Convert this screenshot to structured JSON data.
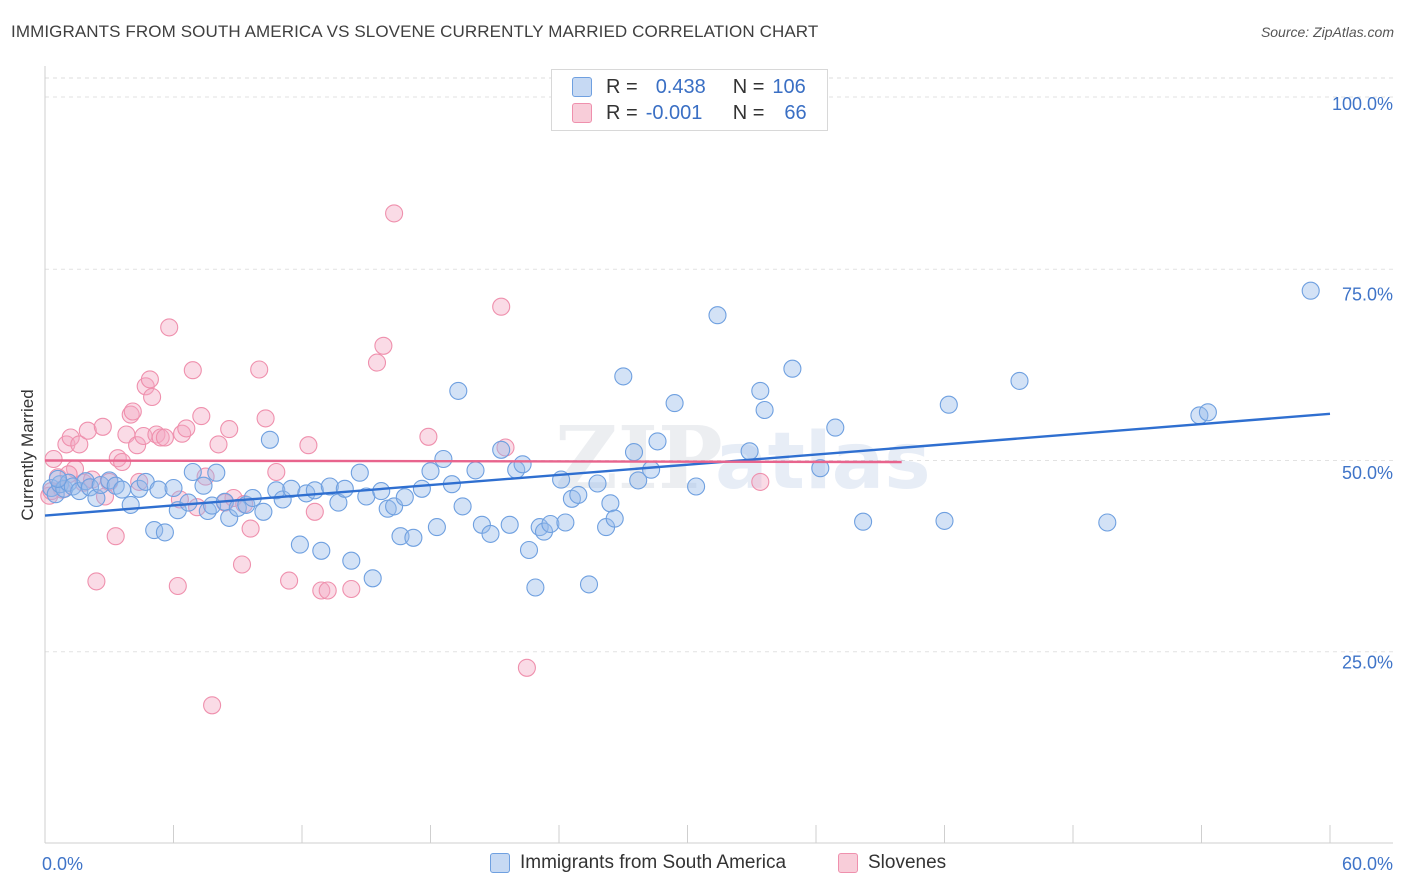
{
  "header": {
    "title": "IMMIGRANTS FROM SOUTH AMERICA VS SLOVENE CURRENTLY MARRIED CORRELATION CHART",
    "source": "Source: ZipAtlas.com"
  },
  "watermark": {
    "zip": "ZIP",
    "atlas": "atlas"
  },
  "legend_stats": [
    {
      "r_label": "R =",
      "r_value": "0.438",
      "n_label": "N =",
      "n_value": "106",
      "color": "#6fa0e0"
    },
    {
      "r_label": "R =",
      "r_value": "-0.001",
      "n_label": "N =",
      "n_value": "66",
      "color": "#ef90ad"
    }
  ],
  "chart_data": {
    "type": "scatter",
    "title": "IMMIGRANTS FROM SOUTH AMERICA VS SLOVENE CURRENTLY MARRIED CORRELATION CHART",
    "xlabel": "",
    "ylabel": "Currently Married",
    "xlim": [
      0,
      60
    ],
    "ylim": [
      0,
      100
    ],
    "x_tick_labels": [
      "0.0%",
      "60.0%"
    ],
    "y_tick_labels": [
      "100.0%",
      "75.0%",
      "50.0%",
      "25.0%"
    ],
    "y_ticks": [
      100,
      75,
      50,
      25
    ],
    "grid": true,
    "legend_position": "bottom",
    "series": [
      {
        "name": "Immigrants from South America",
        "color": "#6fa0e0",
        "trend": {
          "x": [
            0,
            60
          ],
          "y": [
            42.8,
            56.1
          ]
        },
        "points": [
          [
            0.3,
            46.4
          ],
          [
            0.5,
            45.6
          ],
          [
            0.7,
            46.9
          ],
          [
            0.9,
            46.3
          ],
          [
            1.1,
            47.1
          ],
          [
            1.3,
            46.6
          ],
          [
            1.6,
            46.0
          ],
          [
            1.9,
            47.3
          ],
          [
            2.1,
            46.5
          ],
          [
            2.4,
            45.1
          ],
          [
            2.6,
            46.8
          ],
          [
            3.0,
            47.4
          ],
          [
            3.3,
            46.7
          ],
          [
            3.6,
            46.2
          ],
          [
            4.0,
            44.2
          ],
          [
            4.4,
            46.3
          ],
          [
            4.7,
            47.2
          ],
          [
            5.1,
            40.9
          ],
          [
            5.3,
            46.2
          ],
          [
            5.6,
            40.6
          ],
          [
            6.0,
            46.4
          ],
          [
            6.2,
            43.5
          ],
          [
            6.7,
            44.5
          ],
          [
            6.9,
            48.5
          ],
          [
            7.4,
            46.7
          ],
          [
            7.6,
            43.4
          ],
          [
            7.8,
            44.1
          ],
          [
            8.0,
            48.4
          ],
          [
            8.4,
            44.6
          ],
          [
            8.6,
            42.5
          ],
          [
            9.0,
            43.8
          ],
          [
            9.4,
            44.2
          ],
          [
            9.7,
            45.1
          ],
          [
            10.2,
            43.3
          ],
          [
            10.5,
            52.7
          ],
          [
            10.8,
            46.1
          ],
          [
            11.1,
            44.9
          ],
          [
            11.5,
            46.3
          ],
          [
            11.9,
            39.0
          ],
          [
            12.2,
            45.7
          ],
          [
            12.6,
            46.1
          ],
          [
            12.9,
            38.2
          ],
          [
            13.3,
            46.6
          ],
          [
            13.7,
            44.5
          ],
          [
            14.0,
            46.3
          ],
          [
            14.3,
            36.9
          ],
          [
            14.7,
            48.4
          ],
          [
            15.0,
            45.3
          ],
          [
            15.3,
            34.6
          ],
          [
            15.7,
            46.0
          ],
          [
            16.0,
            43.7
          ],
          [
            16.3,
            44.0
          ],
          [
            16.6,
            40.1
          ],
          [
            16.8,
            45.2
          ],
          [
            17.2,
            39.9
          ],
          [
            17.6,
            46.3
          ],
          [
            18.0,
            48.6
          ],
          [
            18.3,
            41.3
          ],
          [
            18.6,
            50.2
          ],
          [
            19.0,
            46.9
          ],
          [
            19.3,
            59.1
          ],
          [
            19.5,
            44.0
          ],
          [
            20.1,
            48.7
          ],
          [
            20.4,
            41.6
          ],
          [
            20.8,
            40.4
          ],
          [
            21.3,
            51.4
          ],
          [
            21.7,
            41.6
          ],
          [
            22.0,
            48.8
          ],
          [
            22.3,
            49.5
          ],
          [
            22.6,
            38.3
          ],
          [
            22.9,
            33.4
          ],
          [
            23.1,
            41.3
          ],
          [
            23.3,
            40.7
          ],
          [
            23.6,
            41.7
          ],
          [
            24.1,
            47.5
          ],
          [
            24.3,
            41.9
          ],
          [
            24.6,
            45.0
          ],
          [
            24.9,
            45.5
          ],
          [
            25.4,
            33.8
          ],
          [
            25.8,
            47.0
          ],
          [
            26.2,
            41.3
          ],
          [
            26.4,
            44.4
          ],
          [
            26.6,
            42.4
          ],
          [
            27.0,
            61.0
          ],
          [
            27.5,
            51.1
          ],
          [
            27.7,
            47.4
          ],
          [
            28.3,
            48.8
          ],
          [
            28.6,
            52.5
          ],
          [
            29.4,
            57.5
          ],
          [
            30.4,
            46.6
          ],
          [
            31.4,
            69.0
          ],
          [
            32.9,
            51.2
          ],
          [
            33.4,
            59.1
          ],
          [
            33.6,
            56.6
          ],
          [
            34.9,
            62.0
          ],
          [
            36.2,
            49.0
          ],
          [
            36.9,
            54.3
          ],
          [
            38.2,
            42.0
          ],
          [
            42.0,
            42.1
          ],
          [
            42.2,
            57.3
          ],
          [
            45.5,
            60.4
          ],
          [
            49.6,
            41.9
          ],
          [
            53.9,
            55.9
          ],
          [
            54.3,
            56.3
          ],
          [
            59.1,
            72.2
          ],
          [
            0.6,
            47.6
          ]
        ]
      },
      {
        "name": "Slovenes",
        "color": "#ef90ad",
        "trend": {
          "x": [
            0,
            40
          ],
          "y": [
            50.0,
            49.8
          ]
        },
        "points": [
          [
            0.2,
            45.4
          ],
          [
            0.4,
            50.2
          ],
          [
            0.6,
            47.8
          ],
          [
            0.8,
            46.2
          ],
          [
            1.0,
            52.1
          ],
          [
            1.2,
            53.0
          ],
          [
            1.4,
            48.9
          ],
          [
            1.6,
            52.1
          ],
          [
            1.8,
            47.1
          ],
          [
            2.0,
            53.9
          ],
          [
            2.2,
            47.5
          ],
          [
            2.4,
            34.2
          ],
          [
            2.7,
            54.4
          ],
          [
            2.8,
            45.3
          ],
          [
            3.0,
            47.2
          ],
          [
            3.3,
            40.1
          ],
          [
            3.4,
            50.3
          ],
          [
            3.6,
            49.8
          ],
          [
            3.8,
            53.4
          ],
          [
            4.0,
            56.0
          ],
          [
            4.1,
            56.4
          ],
          [
            4.3,
            52.0
          ],
          [
            4.4,
            47.2
          ],
          [
            4.6,
            53.2
          ],
          [
            4.7,
            59.7
          ],
          [
            4.9,
            60.6
          ],
          [
            5.0,
            58.3
          ],
          [
            5.2,
            53.4
          ],
          [
            5.4,
            53.0
          ],
          [
            5.6,
            53.0
          ],
          [
            5.8,
            67.4
          ],
          [
            6.2,
            33.6
          ],
          [
            6.3,
            44.9
          ],
          [
            6.4,
            53.5
          ],
          [
            6.6,
            54.2
          ],
          [
            6.9,
            61.8
          ],
          [
            7.1,
            43.9
          ],
          [
            7.3,
            55.8
          ],
          [
            7.5,
            47.9
          ],
          [
            7.8,
            18.0
          ],
          [
            8.1,
            52.1
          ],
          [
            8.4,
            44.5
          ],
          [
            8.6,
            54.1
          ],
          [
            8.8,
            45.1
          ],
          [
            9.2,
            36.4
          ],
          [
            9.3,
            44.3
          ],
          [
            9.6,
            41.1
          ],
          [
            10.0,
            61.9
          ],
          [
            10.3,
            55.5
          ],
          [
            10.8,
            48.5
          ],
          [
            11.4,
            34.3
          ],
          [
            12.3,
            52.0
          ],
          [
            12.6,
            43.3
          ],
          [
            12.9,
            33.0
          ],
          [
            13.2,
            33.0
          ],
          [
            14.3,
            33.2
          ],
          [
            15.5,
            62.8
          ],
          [
            15.8,
            65.0
          ],
          [
            16.3,
            82.3
          ],
          [
            17.9,
            53.1
          ],
          [
            21.3,
            70.1
          ],
          [
            21.5,
            51.7
          ],
          [
            22.5,
            22.9
          ],
          [
            33.4,
            47.2
          ],
          [
            0.3,
            46.0
          ],
          [
            1.1,
            48.2
          ]
        ]
      }
    ]
  },
  "bottom_legend": [
    {
      "label": "Immigrants from South America",
      "color": "#6fa0e0"
    },
    {
      "label": "Slovenes",
      "color": "#ef90ad"
    }
  ]
}
